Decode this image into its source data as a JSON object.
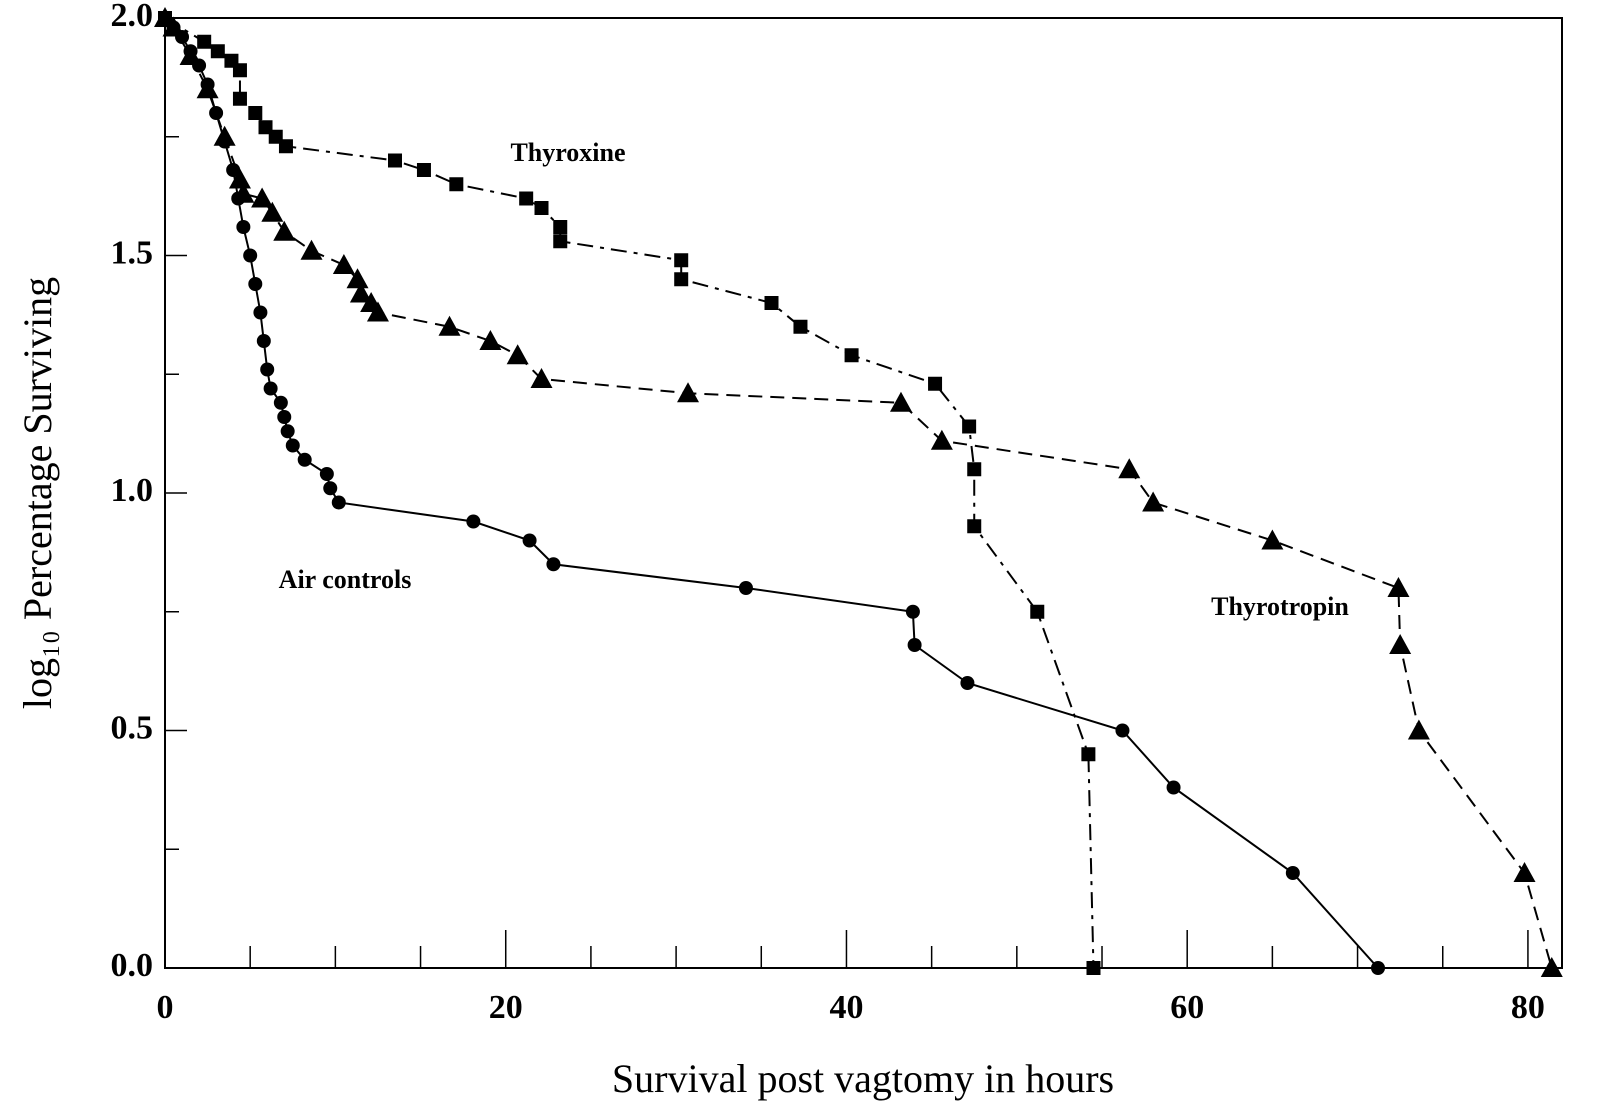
{
  "chart_data": {
    "type": "line",
    "xlabel": "Survival post vagtomy in hours",
    "ylabel": "log₁₀ Percentage Surviving",
    "xlim": [
      0,
      82
    ],
    "ylim": [
      0,
      2
    ],
    "xticks": [
      0,
      20,
      40,
      60,
      80
    ],
    "x_minor_ticks": [
      5,
      10,
      15,
      25,
      30,
      35,
      45,
      50,
      55,
      65,
      70,
      75
    ],
    "yticks": [
      {
        "value": 0,
        "label": "0.0"
      },
      {
        "value": 0.5,
        "label": "0.5"
      },
      {
        "value": 1,
        "label": "1.0"
      },
      {
        "value": 1.5,
        "label": "1.5"
      },
      {
        "value": 2,
        "label": "2.0"
      }
    ],
    "y_minor_ticks": [
      0.25,
      0.75,
      1.25,
      1.75
    ],
    "annotations": [
      "Thyroxine",
      "Air controls",
      "Thyrotropin"
    ],
    "series": [
      {
        "name": "Air controls",
        "color": "#000000",
        "marker": "circle",
        "line_style": "solid",
        "x": [
          0,
          0.5,
          1,
          1.5,
          2,
          2.5,
          3,
          3.5,
          4,
          4.3,
          4.6,
          5,
          5.3,
          5.6,
          5.8,
          6,
          6.2,
          6.8,
          7,
          7.2,
          7.5,
          8.2,
          9.5,
          9.7,
          10.2,
          18.1,
          21.4,
          22.8,
          34.1,
          43.9,
          44,
          47.1,
          56.2,
          59.2,
          66.2,
          71.2
        ],
        "values": [
          2.0,
          1.98,
          1.96,
          1.93,
          1.9,
          1.86,
          1.8,
          1.74,
          1.68,
          1.62,
          1.56,
          1.5,
          1.44,
          1.38,
          1.32,
          1.26,
          1.22,
          1.19,
          1.16,
          1.13,
          1.1,
          1.07,
          1.04,
          1.01,
          0.98,
          0.94,
          0.9,
          0.85,
          0.8,
          0.75,
          0.68,
          0.6,
          0.5,
          0.38,
          0.2,
          0
        ]
      },
      {
        "name": "Thyroxine",
        "color": "#000000",
        "marker": "square",
        "line_style": "dashdot",
        "x": [
          0,
          2.3,
          3.1,
          3.9,
          4.4,
          4.4,
          5.3,
          5.9,
          6.5,
          7.1,
          13.5,
          15.2,
          17.1,
          21.2,
          22.1,
          23.2,
          23.2,
          30.3,
          30.3,
          35.6,
          37.3,
          40.3,
          45.2,
          47.2,
          47.5,
          47.5,
          51.2,
          54.2,
          54.5
        ],
        "values": [
          2.0,
          1.95,
          1.93,
          1.91,
          1.89,
          1.83,
          1.8,
          1.77,
          1.75,
          1.73,
          1.7,
          1.68,
          1.65,
          1.62,
          1.6,
          1.56,
          1.53,
          1.49,
          1.45,
          1.4,
          1.35,
          1.29,
          1.23,
          1.14,
          1.05,
          0.93,
          0.75,
          0.45,
          0
        ]
      },
      {
        "name": "Thyrotropin",
        "color": "#000000",
        "marker": "triangle",
        "line_style": "dashed",
        "x": [
          0,
          0.5,
          1.5,
          2.5,
          3.5,
          4.4,
          4.6,
          5.7,
          6.3,
          7.0,
          8.6,
          10.5,
          11.3,
          11.5,
          12.1,
          12.5,
          16.7,
          19.1,
          20.7,
          22.1,
          30.7,
          43.2,
          45.6,
          56.6,
          58.0,
          65.0,
          72.4,
          72.5,
          73.6,
          79.8,
          81.4
        ],
        "values": [
          2.0,
          1.98,
          1.92,
          1.85,
          1.75,
          1.66,
          1.63,
          1.62,
          1.59,
          1.55,
          1.51,
          1.48,
          1.45,
          1.42,
          1.4,
          1.38,
          1.35,
          1.32,
          1.29,
          1.24,
          1.21,
          1.19,
          1.11,
          1.05,
          0.98,
          0.9,
          0.8,
          0.68,
          0.5,
          0.2,
          0
        ]
      }
    ]
  }
}
